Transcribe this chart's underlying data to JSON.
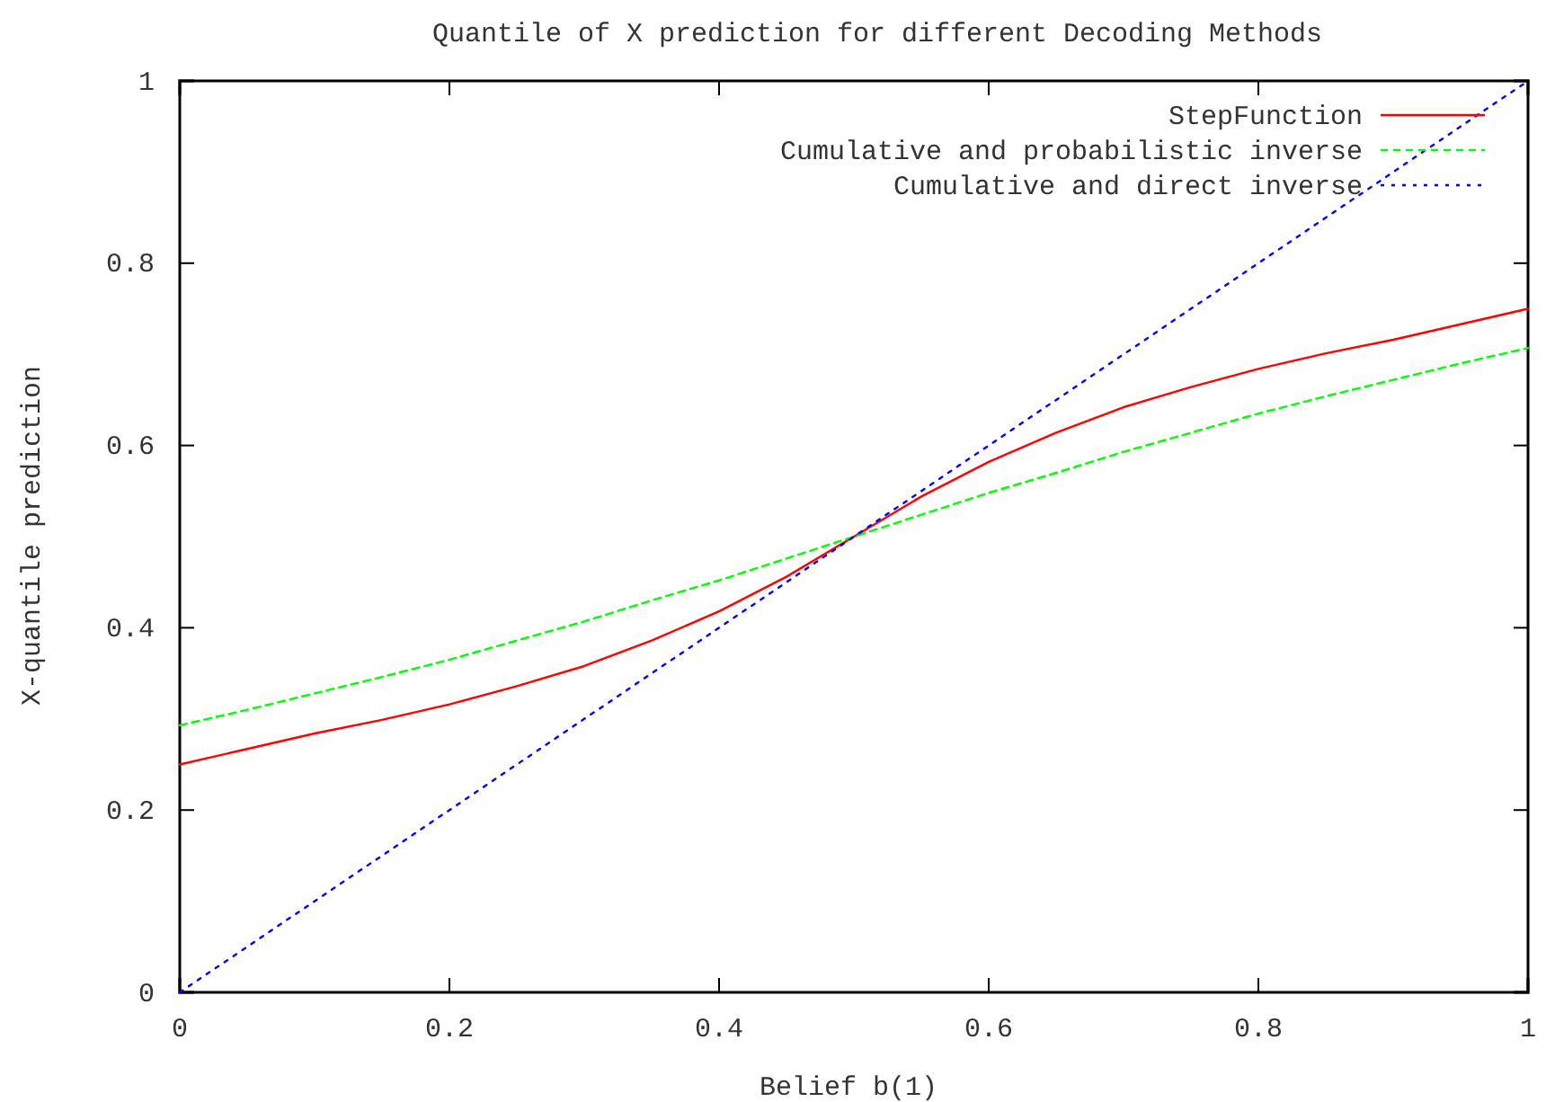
{
  "chart_data": {
    "type": "line",
    "title": "Quantile of X prediction for different Decoding Methods",
    "xlabel": "Belief b(1)",
    "ylabel": "X-quantile prediction",
    "x": [
      0,
      0.05,
      0.1,
      0.15,
      0.2,
      0.25,
      0.3,
      0.35,
      0.4,
      0.45,
      0.5,
      0.55,
      0.6,
      0.65,
      0.7,
      0.75,
      0.8,
      0.85,
      0.9,
      0.95,
      1
    ],
    "series": [
      {
        "name": "StepFunction",
        "color": "#ff0000",
        "line_style": "solid",
        "values": [
          0.25,
          0.267,
          0.284,
          0.299,
          0.316,
          0.336,
          0.358,
          0.386,
          0.418,
          0.456,
          0.5,
          0.544,
          0.582,
          0.614,
          0.642,
          0.664,
          0.684,
          0.701,
          0.716,
          0.733,
          0.75
        ]
      },
      {
        "name": "Cumulative and probabilistic inverse",
        "color": "#00ff00",
        "line_style": "dashed",
        "values": [
          0.293,
          0.31,
          0.328,
          0.346,
          0.365,
          0.386,
          0.407,
          0.43,
          0.452,
          0.476,
          0.5,
          0.524,
          0.548,
          0.57,
          0.593,
          0.614,
          0.635,
          0.654,
          0.672,
          0.69,
          0.707
        ]
      },
      {
        "name": "Cumulative and direct inverse",
        "color": "#0000ff",
        "line_style": "dotted",
        "x": [
          0,
          1
        ],
        "values": [
          0,
          1
        ]
      }
    ],
    "xlim": [
      0,
      1
    ],
    "ylim": [
      0,
      1
    ],
    "xticks": [
      0,
      0.2,
      0.4,
      0.6,
      0.8,
      1
    ],
    "yticks": [
      0,
      0.2,
      0.4,
      0.6,
      0.8,
      1
    ],
    "legend": "top right"
  }
}
